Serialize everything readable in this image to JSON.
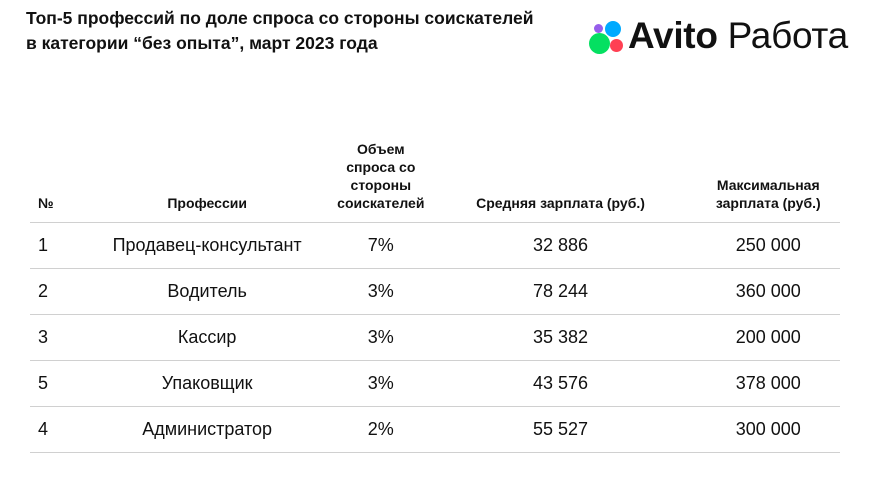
{
  "title": "Топ-5 профессий по доле спроса со стороны соискателей в категории “без опыта”, март 2023 года",
  "logo": {
    "brand": "Avito",
    "product": "Работа",
    "colors": [
      "#965eeb",
      "#00aaff",
      "#04e061",
      "#ff4053"
    ]
  },
  "table": {
    "headers": [
      "№",
      "Профессии",
      "Объем спроса со стороны соискателей",
      "Средняя зарплата (руб.)",
      "Максимальная зарплата (руб.)"
    ],
    "rows": [
      [
        "1",
        "Продавец-консультант",
        "7%",
        "32 886",
        "250 000"
      ],
      [
        "2",
        "Водитель",
        "3%",
        "78 244",
        "360 000"
      ],
      [
        "3",
        "Кассир",
        "3%",
        "35 382",
        "200 000"
      ],
      [
        "5",
        "Упаковщик",
        "3%",
        "43 576",
        "378 000"
      ],
      [
        "4",
        "Администратор",
        "2%",
        "55 527",
        "300 000"
      ]
    ]
  }
}
